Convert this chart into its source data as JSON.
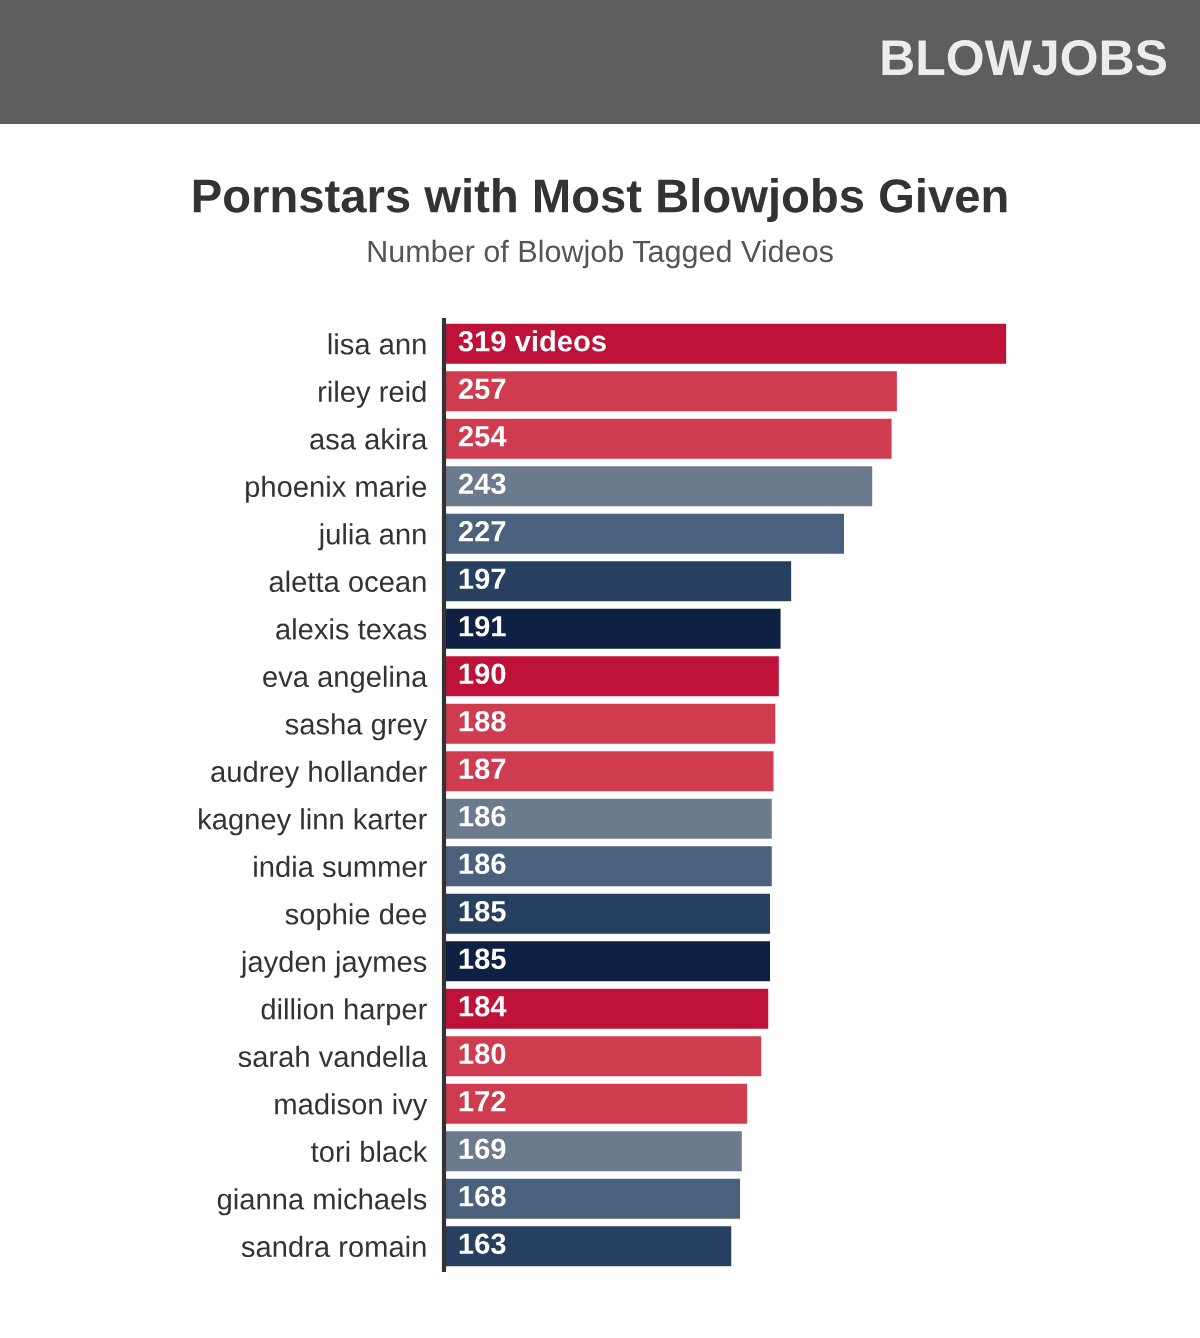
{
  "chart_data": {
    "type": "bar",
    "orientation": "horizontal",
    "title": "Pornstars with Most Blowjobs Given",
    "subtitle": "Number of Blowjob Tagged Videos",
    "annotations": [
      "BLOWJOBS"
    ],
    "categories": [
      "lisa ann",
      "riley reid",
      "asa akira",
      "phoenix marie",
      "julia ann",
      "aletta ocean",
      "alexis texas",
      "eva angelina",
      "sasha grey",
      "audrey hollander",
      "kagney linn karter",
      "india summer",
      "sophie dee",
      "jayden jaymes",
      "dillion harper",
      "sarah vandella",
      "madison ivy",
      "tori black",
      "gianna michaels",
      "sandra romain"
    ],
    "values": [
      319,
      257,
      254,
      243,
      227,
      197,
      191,
      190,
      188,
      187,
      186,
      186,
      185,
      185,
      184,
      180,
      172,
      169,
      168,
      163
    ],
    "value_labels": [
      "319 videos",
      "257",
      "254",
      "243",
      "227",
      "197",
      "191",
      "190",
      "188",
      "187",
      "186",
      "186",
      "185",
      "185",
      "184",
      "180",
      "172",
      "169",
      "168",
      "163"
    ],
    "colors": [
      "#be1238",
      "#cf3c50",
      "#cf3c50",
      "#6b7a8c",
      "#4a607c",
      "#27405f",
      "#0e2143",
      "#be1238",
      "#cf3c50",
      "#cf3c50",
      "#6b7a8c",
      "#4a607c",
      "#27405f",
      "#0e2143",
      "#be1238",
      "#cf3c50",
      "#cf3c50",
      "#6b7a8c",
      "#4a607c",
      "#27405f"
    ],
    "tick_labels": "y"
  }
}
